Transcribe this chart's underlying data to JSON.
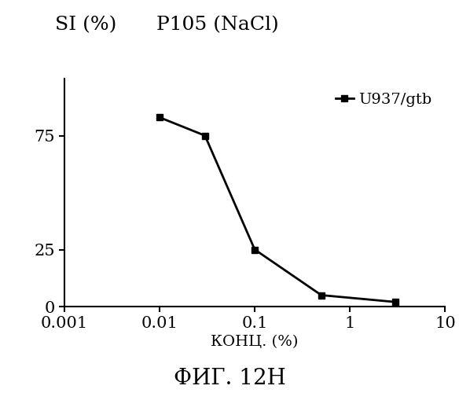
{
  "title_left": "SI (%)",
  "title_right": "P105 (NaCl)",
  "xlabel": "КОНЦ. (%)",
  "caption": "ФИГ. 12H",
  "series": [
    {
      "label": "U937/gtb",
      "x": [
        0.01,
        0.03,
        0.1,
        0.5,
        3.0
      ],
      "y": [
        83,
        75,
        25,
        5,
        2
      ],
      "color": "#000000",
      "marker": "s",
      "linewidth": 2.0,
      "markersize": 6
    }
  ],
  "xlim": [
    0.001,
    10
  ],
  "ylim": [
    0,
    100
  ],
  "yticks": [
    0,
    25,
    75
  ],
  "xticks": [
    0.001,
    0.01,
    0.1,
    1,
    10
  ],
  "xticklabels": [
    "0.001",
    "0.01",
    "0.1",
    "1",
    "10"
  ],
  "background_color": "#ffffff",
  "title_fontsize": 18,
  "label_fontsize": 14,
  "tick_fontsize": 15,
  "legend_fontsize": 14,
  "caption_fontsize": 20
}
